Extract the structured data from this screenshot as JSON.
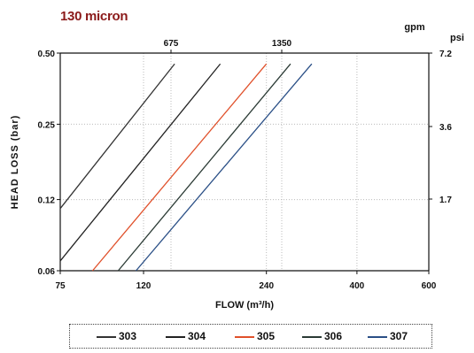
{
  "chart_data": {
    "type": "line",
    "title": "130 micron",
    "xlabel": "FLOW (m³/h)",
    "ylabel": "HEAD LOSS (bar)",
    "x_scale": "log",
    "y_scale": "log",
    "xlim": [
      75,
      600
    ],
    "ylim": [
      0.06,
      0.5
    ],
    "x_ticks": [
      75,
      120,
      240,
      400,
      600
    ],
    "x_tick_labels": [
      "75",
      "120",
      "240",
      "400",
      "600"
    ],
    "y_ticks": [
      0.06,
      0.12,
      0.25,
      0.5
    ],
    "y_tick_labels": [
      "0.06",
      "0.12",
      "0.25",
      "0.50"
    ],
    "top_axis": {
      "unit": "gpm",
      "ticks": [
        675,
        1350
      ],
      "tick_labels": [
        "675",
        "1350"
      ]
    },
    "right_axis": {
      "unit": "psi",
      "ticks": [
        1.7,
        3.6,
        7.2
      ],
      "tick_labels": [
        "1.7",
        "3.6",
        "7.2"
      ]
    },
    "grid": true,
    "legend_position": "bottom",
    "series": [
      {
        "name": "303",
        "color": "#333333",
        "x": [
          75,
          143
        ],
        "y": [
          0.11,
          0.45
        ]
      },
      {
        "name": "304",
        "color": "#222222",
        "x": [
          75,
          185
        ],
        "y": [
          0.066,
          0.45
        ]
      },
      {
        "name": "305",
        "color": "#e0502a",
        "x": [
          90,
          240
        ],
        "y": [
          0.06,
          0.45
        ]
      },
      {
        "name": "306",
        "color": "#2a3a34",
        "x": [
          104,
          275
        ],
        "y": [
          0.06,
          0.45
        ]
      },
      {
        "name": "307",
        "color": "#2a4f86",
        "x": [
          115,
          310
        ],
        "y": [
          0.06,
          0.45
        ]
      }
    ]
  }
}
